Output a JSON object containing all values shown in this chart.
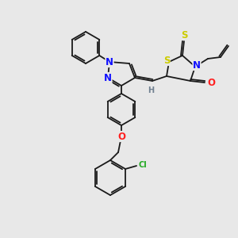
{
  "bg_color": "#e8e8e8",
  "bond_color": "#1a1a1a",
  "atom_colors": {
    "N": "#1010ff",
    "S": "#cccc00",
    "O": "#ff2020",
    "Cl": "#22aa22",
    "H": "#708090",
    "C": "#1a1a1a"
  },
  "font_size_atom": 8.5,
  "font_size_small": 7.0,
  "line_width": 1.3
}
